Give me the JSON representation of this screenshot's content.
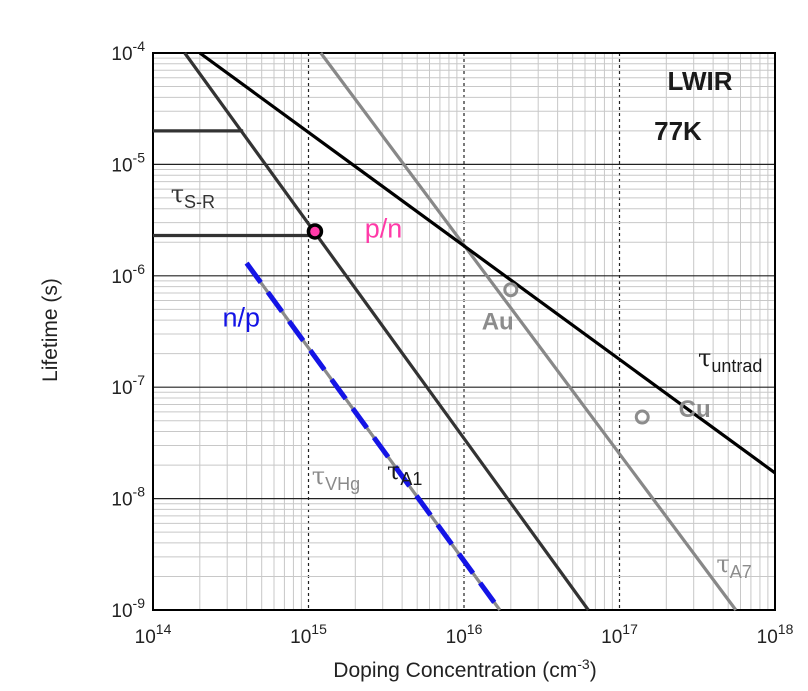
{
  "chart_data": {
    "type": "line",
    "title": "",
    "xlabel": "Doping Concentration (cm",
    "xlabel_sup": "-3",
    "xlabel_tail": ")",
    "ylabel": "Lifetime (s)",
    "x_scale": "log",
    "y_scale": "log",
    "xlim": [
      100000000000000.0,
      1e+18
    ],
    "ylim": [
      1e-09,
      0.0001
    ],
    "grid": true,
    "x_ticks": [
      {
        "base": "10",
        "exp": "14"
      },
      {
        "base": "10",
        "exp": "15"
      },
      {
        "base": "10",
        "exp": "16"
      },
      {
        "base": "10",
        "exp": "17"
      },
      {
        "base": "10",
        "exp": "18"
      }
    ],
    "y_ticks": [
      {
        "base": "10",
        "exp": "-4"
      },
      {
        "base": "10",
        "exp": "-5"
      },
      {
        "base": "10",
        "exp": "-6"
      },
      {
        "base": "10",
        "exp": "-7"
      },
      {
        "base": "10",
        "exp": "-8"
      },
      {
        "base": "10",
        "exp": "-9"
      }
    ],
    "box_label": [
      "LWIR",
      "77K"
    ],
    "series": [
      {
        "name": "τA1",
        "color": "#333333",
        "dash": false,
        "points": [
          [
            160000000000000.0,
            0.0001
          ],
          [
            6.3e+16,
            1e-09
          ]
        ]
      },
      {
        "name": "τA7",
        "color": "#888888",
        "dash": false,
        "points": [
          [
            1200000000000000.0,
            0.0001
          ],
          [
            5.6e+17,
            1e-09
          ]
        ]
      },
      {
        "name": "τuntrad",
        "color": "#000000",
        "dash": false,
        "points": [
          [
            200000000000000.0,
            0.0001
          ],
          [
            1e+18,
            1.7e-08
          ]
        ]
      },
      {
        "name": "τVHg",
        "color": "#8a8a8a",
        "dash": false,
        "points": [
          [
            400000000000000.0,
            1.3e-06
          ],
          [
            1.7e+16,
            1e-09
          ]
        ]
      },
      {
        "name": "n/p",
        "color": "#1414e6",
        "dash": true,
        "points": [
          [
            400000000000000.0,
            1.3e-06
          ],
          [
            1.7e+16,
            1e-09
          ]
        ]
      },
      {
        "name": "τS-R",
        "color": "#333333",
        "dash": false,
        "points": [
          [
            100000000000000.0,
            2e-05
          ],
          [
            380000000000000.0,
            2e-05
          ]
        ]
      },
      {
        "name": "τS-R",
        "color": "#333333",
        "dash": false,
        "points": [
          [
            100000000000000.0,
            2.3e-06
          ],
          [
            1100000000000000.0,
            2.3e-06
          ]
        ]
      }
    ],
    "annotations": [
      {
        "name": "τS-R",
        "sym": "τ",
        "sub": "S-R",
        "x": 130000000000000.0,
        "y": 4.6e-06,
        "color": "#333333"
      },
      {
        "name": "τVHg",
        "sym": "τ",
        "sub": "VHg",
        "x": 1050000000000000.0,
        "y": 1.35e-08,
        "color": "#8a8a8a"
      },
      {
        "name": "τA1",
        "sym": "τ",
        "sub": "A1",
        "x": 3200000000000000.0,
        "y": 1.5e-08,
        "color": "#1a1a1a"
      },
      {
        "name": "τuntrad",
        "sym": "τ",
        "sub": "untrad",
        "x": 3.2e+17,
        "y": 1.55e-07,
        "color": "#1a1a1a"
      },
      {
        "name": "τA7",
        "sym": "τ",
        "sub": "A7",
        "x": 4.2e+17,
        "y": 2.2e-09,
        "color": "#8c8c8c"
      }
    ],
    "markers": [
      {
        "name": "p/n",
        "x": 1100000000000000.0,
        "y": 2.5e-06,
        "color": "#ff3aa8"
      }
    ],
    "text_labels": [
      {
        "name": "p/n",
        "text": "p/n",
        "x": 2300000000000000.0,
        "y": 2.2e-06,
        "color": "#ff3aa8",
        "kind": "ann"
      },
      {
        "name": "n/p",
        "text": "n/p",
        "x": 280000000000000.0,
        "y": 3.5e-07,
        "color": "#1414e6",
        "kind": "ann"
      },
      {
        "name": "Au",
        "text": "Au",
        "x": 1.3e+16,
        "y": 3.3e-07,
        "color": "#8c8c8c",
        "kind": "imp"
      },
      {
        "name": "Cu",
        "text": "Cu",
        "x": 2.4e+17,
        "y": 5.4e-08,
        "color": "#8c8c8c",
        "kind": "imp"
      }
    ],
    "open_markers": [
      {
        "name": "Au",
        "x": 2e+16,
        "y": 7.5e-07,
        "color": "#8c8c8c"
      },
      {
        "name": "Cu",
        "x": 1.4e+17,
        "y": 5.4e-08,
        "color": "#8c8c8c"
      }
    ]
  }
}
